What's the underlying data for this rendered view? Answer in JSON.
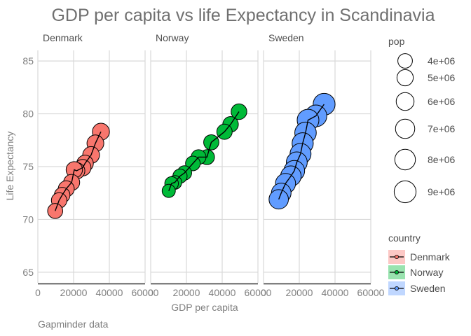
{
  "chart_data": {
    "type": "scatter",
    "title": "GDP per capita  vs life Expectancy in Scandinavia",
    "xlabel": "GDP per capita",
    "ylabel": "Life Expectancy",
    "caption": "Gapminder data",
    "xlim": [
      0,
      60000
    ],
    "ylim": [
      64,
      86
    ],
    "x_ticks": [
      0,
      20000,
      40000,
      60000
    ],
    "x_tick_labels": [
      "0",
      "20000",
      "40000",
      "60000"
    ],
    "y_ticks": [
      65,
      70,
      75,
      80,
      85
    ],
    "y_tick_labels": [
      "65",
      "70",
      "75",
      "80",
      "85"
    ],
    "grid": true,
    "legend_placement": "right",
    "size_legend": {
      "title": "pop",
      "entries": [
        {
          "label": "4e+06",
          "value": 4000000
        },
        {
          "label": "5e+06",
          "value": 5000000
        },
        {
          "label": "6e+06",
          "value": 6000000
        },
        {
          "label": "7e+06",
          "value": 7000000
        },
        {
          "label": "8e+06",
          "value": 8000000
        },
        {
          "label": "9e+06",
          "value": 9000000
        }
      ]
    },
    "color_legend": {
      "title": "country",
      "entries": [
        {
          "label": "Denmark",
          "color": "#f8766d"
        },
        {
          "label": "Norway",
          "color": "#00ba38"
        },
        {
          "label": "Sweden",
          "color": "#619cff"
        }
      ]
    },
    "series": [
      {
        "name": "Denmark",
        "color": "#f8766d",
        "points": [
          {
            "x": 9700,
            "y": 70.8,
            "pop": 4300000
          },
          {
            "x": 11900,
            "y": 71.8,
            "pop": 4500000
          },
          {
            "x": 13600,
            "y": 72.3,
            "pop": 4600000
          },
          {
            "x": 15900,
            "y": 72.9,
            "pop": 4800000
          },
          {
            "x": 18900,
            "y": 73.5,
            "pop": 4900000
          },
          {
            "x": 20400,
            "y": 74.7,
            "pop": 5050000
          },
          {
            "x": 21700,
            "y": 74.6,
            "pop": 5100000
          },
          {
            "x": 25100,
            "y": 74.9,
            "pop": 5150000
          },
          {
            "x": 26400,
            "y": 75.3,
            "pop": 5200000
          },
          {
            "x": 29800,
            "y": 76.1,
            "pop": 5300000
          },
          {
            "x": 32200,
            "y": 77.2,
            "pop": 5350000
          },
          {
            "x": 35300,
            "y": 78.3,
            "pop": 5470000
          }
        ]
      },
      {
        "name": "Norway",
        "color": "#00ba38",
        "points": [
          {
            "x": 10100,
            "y": 72.7,
            "pop": 3300000
          },
          {
            "x": 11700,
            "y": 73.4,
            "pop": 3500000
          },
          {
            "x": 13500,
            "y": 73.5,
            "pop": 3600000
          },
          {
            "x": 16400,
            "y": 74.1,
            "pop": 3800000
          },
          {
            "x": 18900,
            "y": 74.4,
            "pop": 3900000
          },
          {
            "x": 23600,
            "y": 75.3,
            "pop": 4050000
          },
          {
            "x": 26800,
            "y": 75.9,
            "pop": 4150000
          },
          {
            "x": 31500,
            "y": 75.9,
            "pop": 4250000
          },
          {
            "x": 33900,
            "y": 77.3,
            "pop": 4350000
          },
          {
            "x": 41300,
            "y": 78.3,
            "pop": 4450000
          },
          {
            "x": 44700,
            "y": 79.0,
            "pop": 4550000
          },
          {
            "x": 49400,
            "y": 80.2,
            "pop": 4630000
          }
        ]
      },
      {
        "name": "Sweden",
        "color": "#619cff",
        "points": [
          {
            "x": 8500,
            "y": 71.9,
            "pop": 7100000
          },
          {
            "x": 9900,
            "y": 72.5,
            "pop": 7300000
          },
          {
            "x": 12300,
            "y": 73.4,
            "pop": 7600000
          },
          {
            "x": 15300,
            "y": 74.1,
            "pop": 7900000
          },
          {
            "x": 17200,
            "y": 74.6,
            "pop": 8100000
          },
          {
            "x": 18600,
            "y": 75.4,
            "pop": 8250000
          },
          {
            "x": 20700,
            "y": 76.2,
            "pop": 8300000
          },
          {
            "x": 21900,
            "y": 77.2,
            "pop": 8450000
          },
          {
            "x": 23500,
            "y": 78.2,
            "pop": 8700000
          },
          {
            "x": 24900,
            "y": 79.4,
            "pop": 8900000
          },
          {
            "x": 29300,
            "y": 79.8,
            "pop": 8950000
          },
          {
            "x": 33900,
            "y": 80.9,
            "pop": 9050000
          }
        ]
      }
    ]
  }
}
